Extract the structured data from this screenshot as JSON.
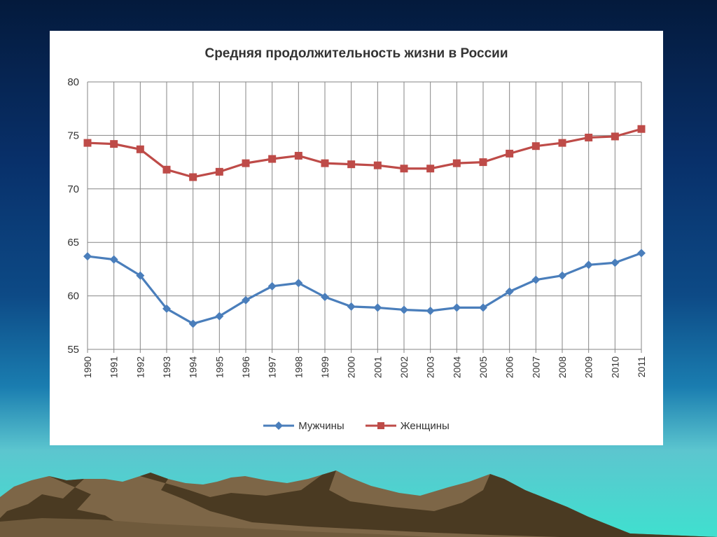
{
  "colors": {
    "men": "#4a7ebb",
    "women": "#be4b48",
    "grid": "#868686",
    "mountain_light": "#8b7355",
    "mountain_dark": "#4a3a22"
  },
  "chart_data": {
    "type": "line",
    "title": "Средняя продолжительность жизни в России",
    "xlabel": "",
    "ylabel": "",
    "ylim": [
      55,
      80
    ],
    "yticks": [
      "55",
      "60",
      "65",
      "70",
      "75",
      "80"
    ],
    "grid": true,
    "legend_position": "bottom",
    "categories": [
      "1990",
      "1991",
      "1992",
      "1993",
      "1994",
      "1995",
      "1996",
      "1997",
      "1998",
      "1999",
      "2000",
      "2001",
      "2002",
      "2003",
      "2004",
      "2005",
      "2006",
      "2007",
      "2008",
      "2009",
      "2010",
      "2011"
    ],
    "series": [
      {
        "name": "Мужчины",
        "color": "#4a7ebb",
        "marker": "diamond",
        "values": [
          63.7,
          63.4,
          61.9,
          58.8,
          57.4,
          58.1,
          59.6,
          60.9,
          61.2,
          59.9,
          59.0,
          58.9,
          58.7,
          58.6,
          58.9,
          58.9,
          60.4,
          61.5,
          61.9,
          62.9,
          63.1,
          64.0
        ]
      },
      {
        "name": "Женщины",
        "color": "#be4b48",
        "marker": "square",
        "values": [
          74.3,
          74.2,
          73.7,
          71.8,
          71.1,
          71.6,
          72.4,
          72.8,
          73.1,
          72.4,
          72.3,
          72.2,
          71.9,
          71.9,
          72.4,
          72.5,
          73.3,
          74.0,
          74.3,
          74.8,
          74.9,
          75.6
        ]
      }
    ]
  }
}
